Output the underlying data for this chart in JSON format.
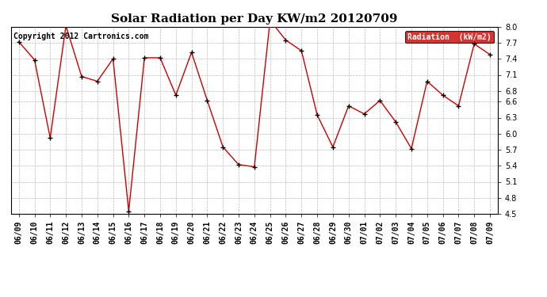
{
  "title": "Solar Radiation per Day KW/m2 20120709",
  "copyright": "Copyright 2012 Cartronics.com",
  "legend_label": "Radiation  (kW/m2)",
  "dates": [
    "06/09",
    "06/10",
    "06/11",
    "06/12",
    "06/13",
    "06/14",
    "06/15",
    "06/16",
    "06/17",
    "06/18",
    "06/19",
    "06/20",
    "06/21",
    "06/22",
    "06/23",
    "06/24",
    "06/25",
    "06/26",
    "06/27",
    "06/28",
    "06/29",
    "06/30",
    "07/01",
    "07/02",
    "07/03",
    "07/04",
    "07/05",
    "07/06",
    "07/07",
    "07/08",
    "07/09"
  ],
  "values": [
    7.72,
    7.38,
    5.92,
    8.02,
    7.07,
    6.98,
    7.4,
    4.55,
    7.42,
    7.42,
    6.72,
    7.52,
    6.62,
    5.75,
    5.42,
    5.38,
    8.12,
    7.75,
    7.55,
    6.35,
    5.75,
    6.52,
    6.37,
    6.62,
    6.22,
    5.72,
    6.98,
    6.72,
    6.52,
    7.68,
    7.48
  ],
  "line_color": "#cc0000",
  "marker_color": "#000000",
  "background_color": "#ffffff",
  "grid_color": "#bbbbbb",
  "ylim": [
    4.5,
    8.0
  ],
  "yticks": [
    4.5,
    4.8,
    5.1,
    5.4,
    5.7,
    6.0,
    6.3,
    6.6,
    6.8,
    7.1,
    7.4,
    7.7,
    8.0
  ],
  "legend_bg": "#cc0000",
  "legend_text_color": "#ffffff",
  "title_fontsize": 11,
  "tick_fontsize": 7,
  "copyright_fontsize": 7
}
